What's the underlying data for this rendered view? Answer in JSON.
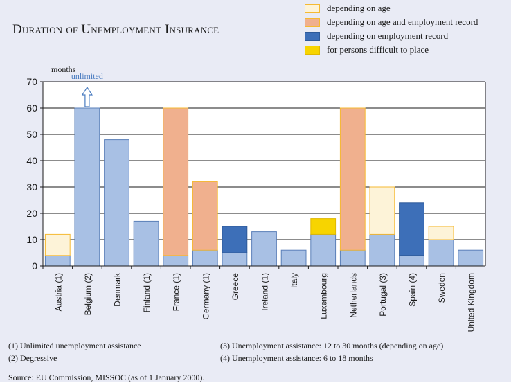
{
  "chart_data": {
    "type": "bar",
    "title": "Duration of Unemployment Insurance",
    "ylabel": "months",
    "ylim": [
      0,
      70
    ],
    "yticks": [
      0,
      10,
      20,
      30,
      40,
      50,
      60,
      70
    ],
    "categories": [
      "Austria (1)",
      "Belgium (2)",
      "Denmark",
      "Finland (1)",
      "France (1)",
      "Germany (1)",
      "Greece",
      "Ireland (1)",
      "Italy",
      "Luxembourg",
      "Netherlands",
      "Portugal (3)",
      "Spain (4)",
      "Sweden",
      "United Kingdom"
    ],
    "base_series": {
      "values": [
        4,
        60,
        48,
        17,
        4,
        6,
        5,
        13,
        6,
        12,
        6,
        12,
        4,
        10,
        6
      ],
      "color": "#a8c0e4"
    },
    "series": [
      {
        "name": "depending on age",
        "color": "#fdf3d8",
        "border": "#f5b932",
        "ranges": [
          [
            4,
            12
          ],
          null,
          null,
          null,
          null,
          null,
          null,
          null,
          null,
          null,
          null,
          [
            12,
            30
          ],
          null,
          [
            10,
            15
          ],
          null
        ]
      },
      {
        "name": "depending on age and employment record",
        "color": "#f0b08e",
        "border": "#f5b932",
        "ranges": [
          null,
          null,
          null,
          null,
          [
            4,
            60
          ],
          [
            6,
            32
          ],
          null,
          null,
          null,
          null,
          [
            6,
            60
          ],
          null,
          null,
          null,
          null
        ]
      },
      {
        "name": "depending on employment record",
        "color": "#3d6fb8",
        "border": "#2e5a99",
        "ranges": [
          null,
          null,
          null,
          null,
          null,
          null,
          [
            5,
            15
          ],
          null,
          null,
          null,
          null,
          null,
          [
            4,
            24
          ],
          null,
          null
        ]
      },
      {
        "name": "for persons difficult to place",
        "color": "#f7d400",
        "border": "#e0b800",
        "ranges": [
          null,
          null,
          null,
          null,
          null,
          null,
          null,
          null,
          null,
          [
            12,
            18
          ],
          null,
          null,
          null,
          null,
          null
        ]
      }
    ],
    "annotation": {
      "text": "unlimited",
      "category": "Belgium (2)",
      "color": "#4a7cc0"
    },
    "grid": true,
    "legend_position": "top-right"
  },
  "notes": {
    "n1": "(1) Unlimited unemployment assistance",
    "n2": "(2) Degressive",
    "n3": "(3) Unemployment assistance: 12 to 30 months (depending on age)",
    "n4": "(4) Unemployment assistance: 6 to 18 months"
  },
  "source": "Source: EU Commission, MISSOC (as of 1 January 2000)."
}
